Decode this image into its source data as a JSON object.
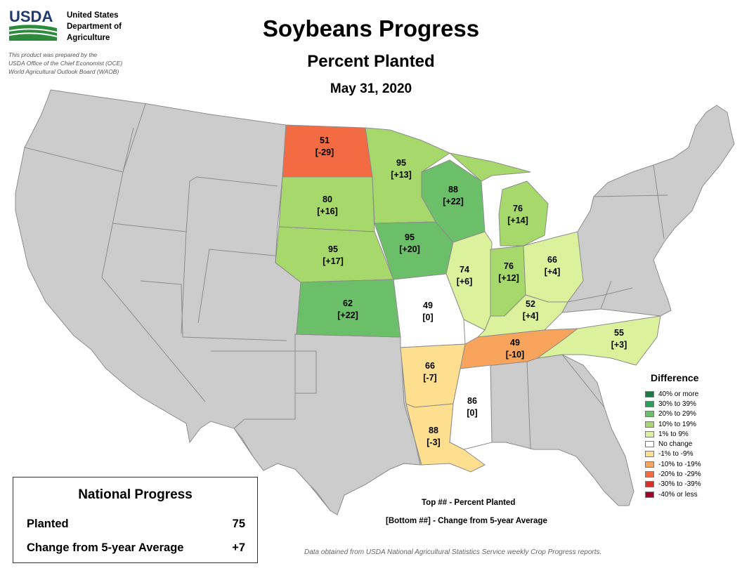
{
  "header": {
    "logo_text": "USDA",
    "agency_lines": [
      "United States",
      "Department of",
      "Agriculture"
    ],
    "prepared_lines": [
      "This product was prepared by the",
      "USDA Office of the Chief Economist (OCE)",
      "World Agricultural Outlook Board (WAOB)"
    ],
    "title": "Soybeans Progress",
    "subtitle": "Percent Planted",
    "date": "May 31, 2020"
  },
  "states": [
    {
      "state": "North Dakota",
      "planted": "51",
      "change": "[-29]",
      "fill": "#f26b43"
    },
    {
      "state": "Minnesota",
      "planted": "95",
      "change": "[+13]",
      "fill": "#a7d86b"
    },
    {
      "state": "South Dakota",
      "planted": "80",
      "change": "[+16]",
      "fill": "#a7d86b"
    },
    {
      "state": "Wisconsin",
      "planted": "88",
      "change": "[+22]",
      "fill": "#6cbf69"
    },
    {
      "state": "Michigan",
      "planted": "76",
      "change": "[+14]",
      "fill": "#a7d86b"
    },
    {
      "state": "Nebraska",
      "planted": "95",
      "change": "[+17]",
      "fill": "#a7d86b"
    },
    {
      "state": "Iowa",
      "planted": "95",
      "change": "[+20]",
      "fill": "#6cbf69"
    },
    {
      "state": "Illinois",
      "planted": "74",
      "change": "[+6]",
      "fill": "#dcf19c"
    },
    {
      "state": "Indiana",
      "planted": "76",
      "change": "[+12]",
      "fill": "#a7d86b"
    },
    {
      "state": "Ohio",
      "planted": "66",
      "change": "[+4]",
      "fill": "#dcf19c"
    },
    {
      "state": "Kansas",
      "planted": "62",
      "change": "[+22]",
      "fill": "#6cbf69"
    },
    {
      "state": "Missouri",
      "planted": "49",
      "change": "[0]",
      "fill": "#ffffff"
    },
    {
      "state": "Kentucky",
      "planted": "52",
      "change": "[+4]",
      "fill": "#dcf19c"
    },
    {
      "state": "North Carolina",
      "planted": "55",
      "change": "[+3]",
      "fill": "#dcf19c"
    },
    {
      "state": "Tennessee",
      "planted": "49",
      "change": "[-10]",
      "fill": "#f9a45c"
    },
    {
      "state": "Arkansas",
      "planted": "66",
      "change": "[-7]",
      "fill": "#fedf8f"
    },
    {
      "state": "Mississippi",
      "planted": "86",
      "change": "[0]",
      "fill": "#ffffff"
    },
    {
      "state": "Louisiana",
      "planted": "88",
      "change": "[-3]",
      "fill": "#fedf8f"
    }
  ],
  "legend": {
    "title": "Difference",
    "items": [
      {
        "label": "40% or more",
        "color": "#1a7a45"
      },
      {
        "label": "30% to 39%",
        "color": "#2f9e5a"
      },
      {
        "label": "20% to 29%",
        "color": "#6cbf69"
      },
      {
        "label": "10% to 19%",
        "color": "#a7d86b"
      },
      {
        "label": "1% to 9%",
        "color": "#dcf19c"
      },
      {
        "label": "No change",
        "color": "#ffffff"
      },
      {
        "label": "-1% to -9%",
        "color": "#fedf8f"
      },
      {
        "label": "-10% to -19%",
        "color": "#f9a45c"
      },
      {
        "label": "-20% to -29%",
        "color": "#f26b43"
      },
      {
        "label": "-30% to -39%",
        "color": "#d73027"
      },
      {
        "label": "-40% or less",
        "color": "#a50026"
      }
    ]
  },
  "national": {
    "title": "National Progress",
    "planted_label": "Planted",
    "planted_value": "75",
    "change_label": "Change from 5-year Average",
    "change_value": "+7"
  },
  "key": {
    "top": "Top ## - Percent Planted",
    "bottom": "[Bottom ##] - Change from 5-year Average"
  },
  "source": "Data obtained from USDA National Agricultural Statistics Service weekly Crop Progress reports.",
  "colors": {
    "unreported_state": "#cccccc",
    "state_border": "#8c8c8c"
  }
}
